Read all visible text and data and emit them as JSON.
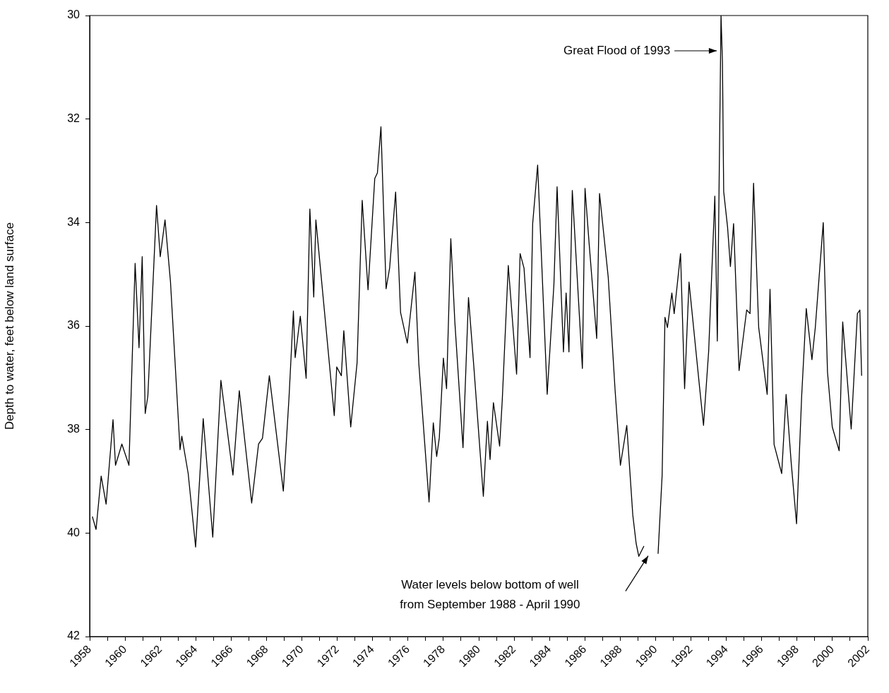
{
  "chart_data": {
    "type": "line",
    "ylabel": "Depth to water, feet below land surface",
    "color": "#000000",
    "line_style": "solid",
    "marker": "none",
    "legend": false,
    "xlim": [
      1958,
      2002
    ],
    "xticks": [
      1958,
      {
        "value": 1959,
        "label": null
      },
      1960,
      {
        "value": 1961,
        "label": null
      },
      1962,
      {
        "value": 1963,
        "label": null
      },
      1964,
      {
        "value": 1965,
        "label": null
      },
      1966,
      {
        "value": 1967,
        "label": null
      },
      1968,
      {
        "value": 1969,
        "label": null
      },
      1970,
      {
        "value": 1971,
        "label": null
      },
      1972,
      {
        "value": 1973,
        "label": null
      },
      1974,
      {
        "value": 1975,
        "label": null
      },
      1976,
      {
        "value": 1977,
        "label": null
      },
      1978,
      {
        "value": 1979,
        "label": null
      },
      1980,
      {
        "value": 1981,
        "label": null
      },
      1982,
      {
        "value": 1983,
        "label": null
      },
      1984,
      {
        "value": 1985,
        "label": null
      },
      1986,
      {
        "value": 1987,
        "label": null
      },
      1988,
      {
        "value": 1989,
        "label": null
      },
      1990,
      {
        "value": 1991,
        "label": null
      },
      1992,
      {
        "value": 1993,
        "label": null
      },
      1994,
      {
        "value": 1995,
        "label": null
      },
      1996,
      {
        "value": 1997,
        "label": null
      },
      1998,
      {
        "value": 1999,
        "label": null
      },
      2000,
      {
        "value": 2001,
        "label": null
      },
      2002
    ],
    "ylim": [
      42,
      30
    ],
    "yticks": [
      30,
      32,
      34,
      36,
      38,
      40,
      42
    ],
    "x": [
      1958.15,
      1958.36,
      1958.65,
      1958.93,
      1959.32,
      1959.46,
      1959.82,
      1960.22,
      1960.57,
      1960.79,
      1960.97,
      1961.14,
      1961.29,
      1961.78,
      1961.99,
      1962.26,
      1962.57,
      1963.11,
      1963.21,
      1963.57,
      1963.99,
      1964.42,
      1964.96,
      1965.42,
      1966.1,
      1966.46,
      1967.16,
      1967.55,
      1967.77,
      1968.16,
      1968.95,
      1969.27,
      1969.52,
      1969.62,
      1969.91,
      1970.24,
      1970.45,
      1970.67,
      1970.79,
      1971.12,
      1971.83,
      1971.97,
      1972.23,
      1972.37,
      1972.76,
      1973.12,
      1973.41,
      1973.74,
      1974.12,
      1974.27,
      1974.47,
      1974.76,
      1974.96,
      1975.3,
      1975.58,
      1975.96,
      1976.39,
      1976.61,
      1977.19,
      1977.43,
      1977.62,
      1977.77,
      1978.0,
      1978.18,
      1978.42,
      1978.65,
      1979.11,
      1979.42,
      1979.73,
      1980.26,
      1980.49,
      1980.64,
      1980.83,
      1981.18,
      1981.33,
      1981.67,
      1982.14,
      1982.34,
      1982.56,
      1982.9,
      1983.05,
      1983.33,
      1983.87,
      1984.25,
      1984.43,
      1984.79,
      1984.94,
      1985.1,
      1985.29,
      1985.86,
      1986.01,
      1986.24,
      1986.67,
      1986.83,
      1987.32,
      1987.71,
      1988.01,
      1988.37,
      1988.71,
      1988.9,
      1989.05,
      1989.34,
      1989.7,
      1990.14,
      1990.37,
      1990.53,
      1990.67,
      1990.92,
      1991.05,
      1991.41,
      1991.64,
      1991.89,
      1992.48,
      1992.71,
      1993.0,
      1993.35,
      1993.49,
      1993.7,
      1993.78,
      1993.85,
      1994.07,
      1994.23,
      1994.41,
      1994.72,
      1995.15,
      1995.34,
      1995.54,
      1995.83,
      1996.31,
      1996.47,
      1996.7,
      1997.13,
      1997.38,
      1997.67,
      1997.97,
      1998.26,
      1998.52,
      1998.84,
      1999.03,
      1999.48,
      1999.72,
      1999.99,
      2000.38,
      2000.58,
      2001.06,
      2001.41,
      2001.55,
      2001.65
    ],
    "values": [
      39.68,
      39.93,
      38.9,
      39.44,
      37.81,
      38.69,
      38.28,
      38.69,
      34.79,
      36.42,
      34.66,
      37.69,
      37.35,
      33.67,
      34.66,
      33.95,
      35.15,
      38.39,
      38.13,
      38.85,
      40.27,
      37.79,
      40.08,
      37.05,
      38.88,
      37.25,
      39.42,
      38.28,
      38.17,
      36.96,
      39.19,
      37.39,
      35.71,
      36.61,
      35.81,
      37.01,
      33.74,
      35.44,
      33.95,
      35.15,
      37.73,
      36.79,
      36.96,
      36.09,
      37.95,
      36.71,
      33.57,
      35.3,
      33.15,
      33.04,
      32.15,
      35.28,
      34.88,
      33.41,
      35.74,
      36.33,
      34.96,
      36.72,
      39.4,
      37.87,
      38.52,
      38.16,
      36.62,
      37.21,
      34.31,
      35.93,
      38.35,
      35.45,
      36.82,
      39.29,
      37.84,
      38.58,
      37.48,
      38.32,
      37.43,
      34.83,
      36.93,
      34.6,
      34.88,
      36.61,
      34.02,
      32.89,
      37.32,
      35.2,
      33.31,
      36.5,
      35.36,
      36.5,
      33.38,
      36.82,
      33.34,
      34.4,
      36.24,
      33.44,
      35.05,
      37.24,
      38.69,
      37.92,
      39.65,
      40.2,
      40.45,
      40.25,
      null,
      40.4,
      38.88,
      35.83,
      36.03,
      35.36,
      35.76,
      34.6,
      37.21,
      35.15,
      37.16,
      37.92,
      36.49,
      33.49,
      36.29,
      30,
      30.9,
      33.4,
      34.09,
      34.85,
      34.02,
      36.86,
      35.69,
      35.76,
      33.24,
      36.03,
      37.32,
      35.29,
      38.29,
      38.85,
      37.32,
      38.65,
      39.82,
      37.35,
      35.66,
      36.65,
      36.03,
      34.0,
      36.89,
      37.95,
      38.41,
      35.92,
      37.99,
      35.76,
      35.69,
      36.96
    ],
    "annotations": [
      "Great Flood of 1993",
      "Water levels below bottom of well\nfrom September 1988 - April 1990"
    ]
  }
}
